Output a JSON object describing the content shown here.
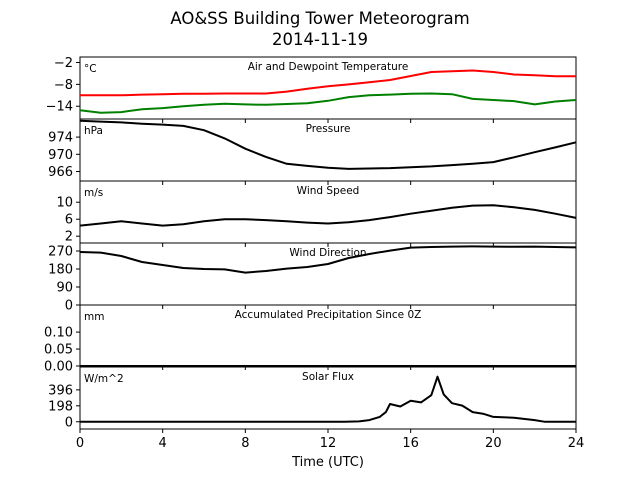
{
  "figure": {
    "title_line1": "AO&SS Building Tower Meteorogram",
    "title_line2": "2014-11-19",
    "xlabel": "Time (UTC)",
    "x_ticks": [
      "0",
      "4",
      "8",
      "12",
      "16",
      "20",
      "24"
    ]
  },
  "chart_data": [
    {
      "type": "line",
      "title": "Air and Dewpoint Temperature",
      "unit": "°C",
      "xlim": [
        0,
        24
      ],
      "ylim": [
        -17.5,
        -0.5
      ],
      "y_ticks": [
        -2,
        -8,
        -14
      ],
      "y_tick_labels": [
        "−2",
        "−8",
        "−14"
      ],
      "x": [
        0,
        1,
        2,
        3,
        4,
        5,
        6,
        7,
        8,
        9,
        10,
        11,
        12,
        13,
        14,
        15,
        16,
        17,
        18,
        19,
        20,
        21,
        22,
        23,
        24
      ],
      "series": [
        {
          "color": "#ff0000",
          "values": [
            -11,
            -11,
            -11,
            -10.8,
            -10.7,
            -10.6,
            -10.6,
            -10.5,
            -10.5,
            -10.5,
            -10,
            -9.2,
            -8.5,
            -8,
            -7.4,
            -6.8,
            -5.7,
            -4.6,
            -4.4,
            -4.2,
            -4.6,
            -5.3,
            -5.5,
            -5.8,
            -5.8
          ]
        },
        {
          "color": "#008000",
          "values": [
            -15.1,
            -15.8,
            -15.6,
            -14.8,
            -14.5,
            -14,
            -13.6,
            -13.3,
            -13.5,
            -13.6,
            -13.4,
            -13.2,
            -12.5,
            -11.5,
            -11,
            -10.8,
            -10.6,
            -10.5,
            -10.7,
            -12,
            -12.3,
            -12.6,
            -13.5,
            -12.7,
            -12.3
          ]
        }
      ]
    },
    {
      "type": "line",
      "title": "Pressure",
      "unit": "hPa",
      "xlim": [
        0,
        24
      ],
      "ylim": [
        963.8,
        978.2
      ],
      "y_ticks": [
        974,
        970,
        966
      ],
      "y_tick_labels": [
        "974",
        "970",
        "966"
      ],
      "x": [
        0,
        1,
        2,
        3,
        4,
        5,
        6,
        7,
        8,
        9,
        10,
        11,
        12,
        13,
        14,
        15,
        16,
        17,
        18,
        19,
        20,
        21,
        22,
        23,
        24
      ],
      "series": [
        {
          "color": "#000000",
          "values": [
            977.8,
            977.6,
            977.4,
            977.1,
            976.9,
            976.6,
            975.6,
            973.7,
            971.3,
            969.4,
            967.8,
            967.3,
            966.9,
            966.6,
            966.7,
            966.8,
            967,
            967.2,
            967.5,
            967.8,
            968.2,
            969.3,
            970.5,
            971.6,
            972.8
          ]
        }
      ]
    },
    {
      "type": "line",
      "title": "Wind Speed",
      "unit": "m/s",
      "xlim": [
        0,
        24
      ],
      "ylim": [
        0.4,
        15
      ],
      "y_ticks": [
        10,
        6,
        2
      ],
      "y_tick_labels": [
        "10",
        "6",
        "2"
      ],
      "x": [
        0,
        1,
        2,
        3,
        4,
        5,
        6,
        7,
        8,
        9,
        10,
        11,
        12,
        13,
        14,
        15,
        16,
        17,
        18,
        19,
        20,
        21,
        22,
        23,
        24
      ],
      "series": [
        {
          "color": "#000000",
          "values": [
            4.5,
            5,
            5.5,
            5,
            4.5,
            4.8,
            5.5,
            6,
            6,
            5.8,
            5.5,
            5.2,
            5,
            5.3,
            5.8,
            6.5,
            7.3,
            8,
            8.7,
            9.2,
            9.3,
            8.8,
            8.2,
            7.3,
            6.3
          ]
        }
      ]
    },
    {
      "type": "line",
      "title": "Wind Direction",
      "unit": "",
      "xlim": [
        0,
        24
      ],
      "ylim": [
        0,
        310
      ],
      "y_ticks": [
        270,
        180,
        90,
        0
      ],
      "y_tick_labels": [
        "270",
        "180",
        "90",
        "0"
      ],
      "x": [
        0,
        1,
        2,
        3,
        4,
        5,
        6,
        7,
        8,
        9,
        10,
        11,
        12,
        13,
        14,
        15,
        16,
        17,
        18,
        19,
        20,
        21,
        22,
        23,
        24
      ],
      "series": [
        {
          "color": "#000000",
          "values": [
            265,
            262,
            245,
            215,
            200,
            185,
            180,
            178,
            162,
            170,
            182,
            190,
            205,
            235,
            255,
            272,
            287,
            290,
            292,
            293,
            292,
            291,
            292,
            290,
            288
          ]
        }
      ]
    },
    {
      "type": "line",
      "title": "Accumulated Precipitation Since 0Z",
      "unit": "mm",
      "xlim": [
        0,
        24
      ],
      "ylim": [
        0,
        0.18
      ],
      "y_ticks": [
        0.1,
        0.05,
        0
      ],
      "y_tick_labels": [
        "0.10",
        "0.05",
        "0.00"
      ],
      "x": [
        0,
        24
      ],
      "series": [
        {
          "color": "#000000",
          "values": [
            0,
            0
          ]
        }
      ]
    },
    {
      "type": "line",
      "title": "Solar Flux",
      "unit": "W/m^2",
      "xlim": [
        0,
        24
      ],
      "ylim": [
        -90,
        680
      ],
      "y_ticks": [
        396,
        198,
        0
      ],
      "y_tick_labels": [
        "396",
        "198",
        "0"
      ],
      "x": [
        0,
        12.8,
        13.5,
        14,
        14.5,
        14.8,
        15,
        15.5,
        16,
        16.5,
        17,
        17.3,
        17.6,
        18,
        18.5,
        19,
        19.5,
        20,
        21,
        22,
        22.5,
        24
      ],
      "series": [
        {
          "color": "#000000",
          "values": [
            0,
            0,
            5,
            20,
            60,
            120,
            220,
            190,
            260,
            240,
            330,
            560,
            340,
            230,
            200,
            120,
            100,
            60,
            50,
            20,
            0,
            0
          ]
        }
      ]
    }
  ]
}
